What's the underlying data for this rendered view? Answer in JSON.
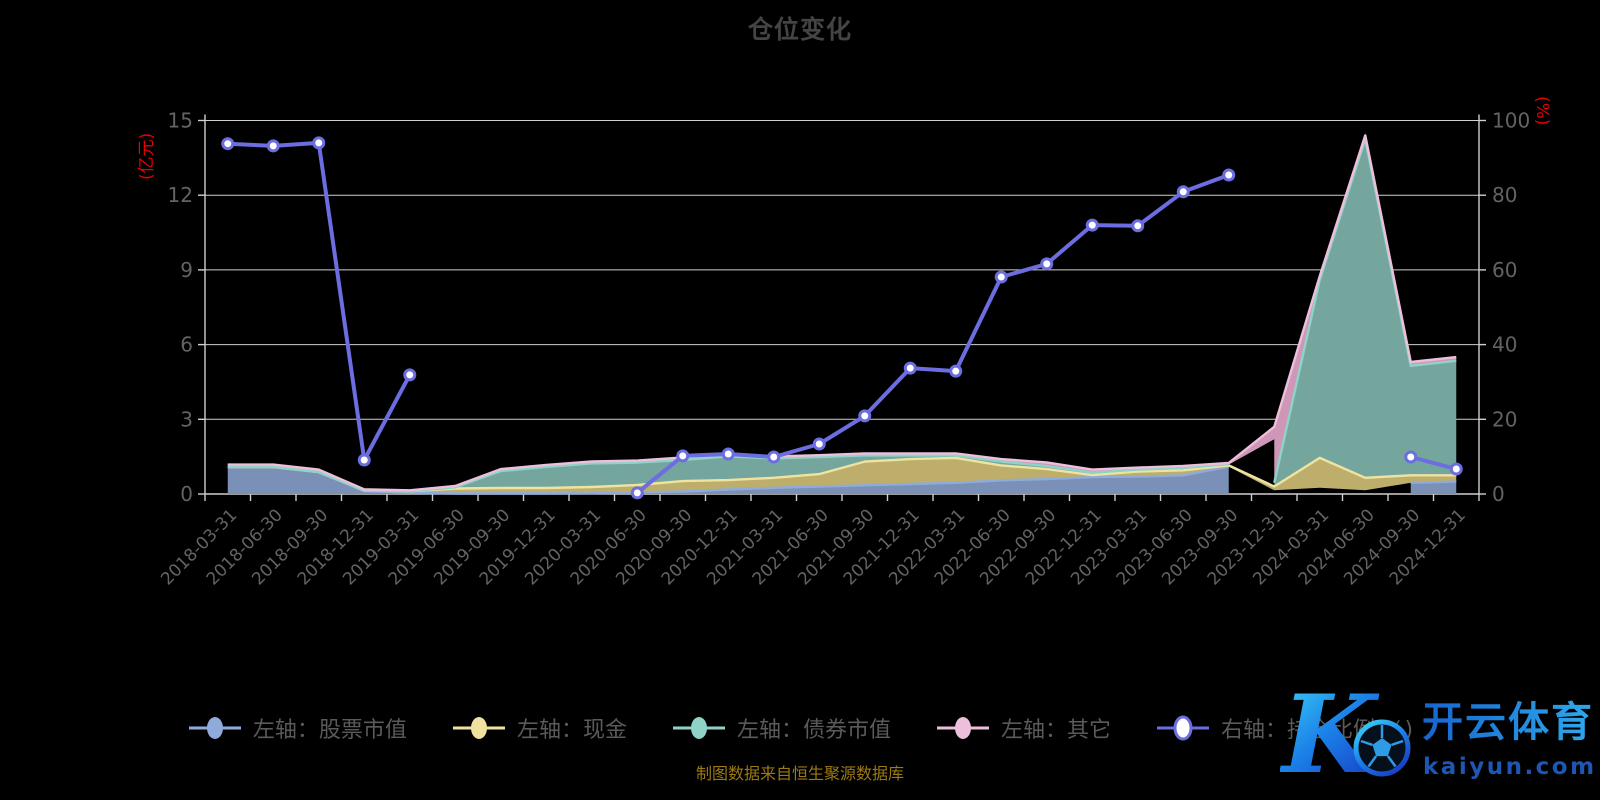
{
  "title": "仓位变化",
  "source_note": "制图数据来自恒生聚源数据库",
  "watermark": {
    "logo_letter": "K",
    "brand": "开云体育",
    "domain": "kaiyun.com"
  },
  "colors": {
    "background": "#000000",
    "grid": "#cfcfcf",
    "tick_text": "#636363",
    "title_text": "#444444",
    "legend_text": "#5a5a5a",
    "axis_name_red": "#e60000",
    "source_text": "#9c7a12",
    "ratio_line": "#6b6de0",
    "stock_fill": "#7b90b6",
    "stock_edge": "#8fabdc",
    "cash_fill": "#bdae6b",
    "cash_edge": "#f0e3a0",
    "bond_fill": "#74a69e",
    "bond_edge": "#8fd2c8",
    "other_fill": "#ce97b8",
    "other_edge": "#edbfda",
    "watermark_blue": "#1e56b4"
  },
  "chart_data": {
    "type": "area",
    "title": "仓位变化",
    "grid": true,
    "legend_position": "bottom",
    "categories": [
      "2018-03-31",
      "2018-06-30",
      "2018-09-30",
      "2018-12-31",
      "2019-03-31",
      "2019-06-30",
      "2019-09-30",
      "2019-12-31",
      "2020-03-31",
      "2020-06-30",
      "2020-09-30",
      "2020-12-31",
      "2021-03-31",
      "2021-06-30",
      "2021-09-30",
      "2021-12-31",
      "2022-03-31",
      "2022-06-30",
      "2022-09-30",
      "2022-12-31",
      "2023-03-31",
      "2023-06-30",
      "2023-09-30",
      "2023-12-31",
      "2024-03-31",
      "2024-06-30",
      "2024-09-30",
      "2024-12-31"
    ],
    "left_axis": {
      "name": "(亿元)",
      "min": 0,
      "max": 15,
      "ticks": [
        0,
        3,
        6,
        9,
        12,
        15
      ]
    },
    "right_axis": {
      "name": "(%)",
      "min": 0,
      "max": 100,
      "ticks": [
        0,
        20,
        40,
        60,
        80,
        100
      ]
    },
    "series": [
      {
        "name": "左轴：股票市值",
        "type": "area",
        "axis": "left",
        "values": [
          1.08,
          1.08,
          0.88,
          0.12,
          0.05,
          0.02,
          0.02,
          0.02,
          0.03,
          0.06,
          0.1,
          0.18,
          0.25,
          0.3,
          0.35,
          0.4,
          0.45,
          0.55,
          0.6,
          0.68,
          0.7,
          0.75,
          1.1,
          0.15,
          0.25,
          0.15,
          0.45,
          0.5
        ],
        "visible_segments": [
          [
            0,
            22
          ],
          [
            26,
            27
          ]
        ]
      },
      {
        "name": "左轴：现金",
        "type": "area",
        "axis": "left",
        "values": [
          0,
          0,
          0,
          0.02,
          0.06,
          0.2,
          0.22,
          0.22,
          0.25,
          0.3,
          0.42,
          0.38,
          0.4,
          0.5,
          0.95,
          1.0,
          1.0,
          0.6,
          0.4,
          0.08,
          0.2,
          0.2,
          0.05,
          0.15,
          1.2,
          0.5,
          0.3,
          0.25
        ],
        "visible_segments": [
          [
            0,
            27
          ]
        ]
      },
      {
        "name": "左轴：债券市值",
        "type": "area",
        "axis": "left",
        "values": [
          0,
          0,
          0,
          0,
          0,
          0.05,
          0.68,
          0.85,
          0.95,
          0.9,
          0.85,
          0.95,
          0.78,
          0.68,
          0.25,
          0.15,
          0.1,
          0.15,
          0.12,
          0.1,
          0.08,
          0.1,
          0.05,
          0.15,
          7.15,
          13.6,
          4.4,
          4.6
        ],
        "visible_segments": [
          [
            0,
            22
          ],
          [
            23,
            27
          ]
        ]
      },
      {
        "name": "左轴：其它",
        "type": "area",
        "axis": "left",
        "values": [
          0.1,
          0.1,
          0.1,
          0.05,
          0.04,
          0.05,
          0.08,
          0.08,
          0.08,
          0.08,
          0.1,
          0.08,
          0.08,
          0.08,
          0.08,
          0.08,
          0.08,
          0.1,
          0.15,
          0.12,
          0.08,
          0.08,
          0.05,
          2.25,
          0.15,
          0.15,
          0.15,
          0.15
        ],
        "visible_segments": [
          [
            0,
            27
          ]
        ]
      },
      {
        "name": "右轴：持仓比例(%)",
        "type": "line",
        "axis": "right",
        "values": [
          93.8,
          93.2,
          94.0,
          9.1,
          31.9,
          null,
          null,
          null,
          null,
          0.3,
          10.2,
          10.7,
          9.9,
          13.4,
          20.9,
          33.7,
          32.9,
          58.1,
          61.6,
          72.0,
          71.8,
          80.9,
          85.4,
          null,
          null,
          null,
          9.9,
          6.7
        ]
      }
    ],
    "gap_notch_polygon_xy": [
      [
        22,
        1.18
      ],
      [
        23,
        2.2
      ],
      [
        23,
        0.4
      ]
    ]
  },
  "legend": [
    {
      "label": "左轴：股票市值",
      "marker": "ellipse-blue"
    },
    {
      "label": "左轴：现金",
      "marker": "ellipse-yellow"
    },
    {
      "label": "左轴：债券市值",
      "marker": "ellipse-teal"
    },
    {
      "label": "左轴：其它",
      "marker": "ellipse-pink"
    },
    {
      "label": "右轴：持仓比例(%)",
      "marker": "ellipse-white-blue-ring"
    }
  ]
}
